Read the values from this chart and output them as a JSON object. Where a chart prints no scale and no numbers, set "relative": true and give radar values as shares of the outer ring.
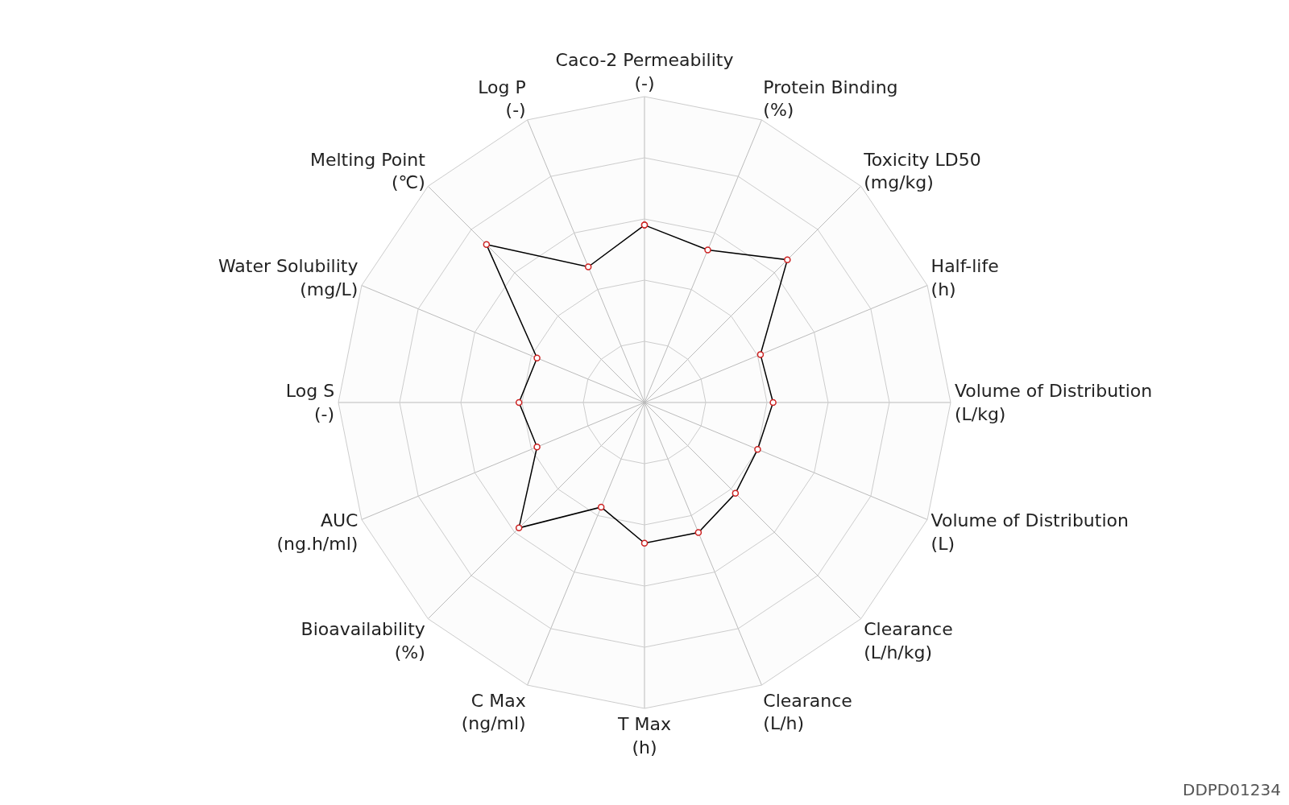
{
  "chart_data": {
    "type": "radar",
    "relative": true,
    "marker": "circle",
    "line_style": "solid",
    "grid": true,
    "categories": [
      "Caco-2 Permeability\n(-)",
      "Protein Binding\n(%)",
      "Toxicity LD50\n(mg/kg)",
      "Half-life\n(h)",
      "Volume of Distribution\n(L/kg)",
      "Volume of Distribution\n(L)",
      "Clearance\n(L/h/kg)",
      "Clearance\n(L/h)",
      "T Max\n(h)",
      "C Max\n(ng/ml)",
      "Bioavailability\n(%)",
      "AUC\n(ng.h/ml)",
      "Log S\n(-)",
      "Water Solubility\n(mg/L)",
      "Melting Point\n(℃)",
      "Log P\n(-)"
    ],
    "series": [
      {
        "color": "#000000",
        "values": [
          0.58,
          0.54,
          0.66,
          0.41,
          0.42,
          0.4,
          0.42,
          0.46,
          0.46,
          0.37,
          0.58,
          0.38,
          0.41,
          0.38,
          0.73,
          0.48
        ]
      }
    ],
    "annotations": [
      "DDPD01234"
    ]
  }
}
